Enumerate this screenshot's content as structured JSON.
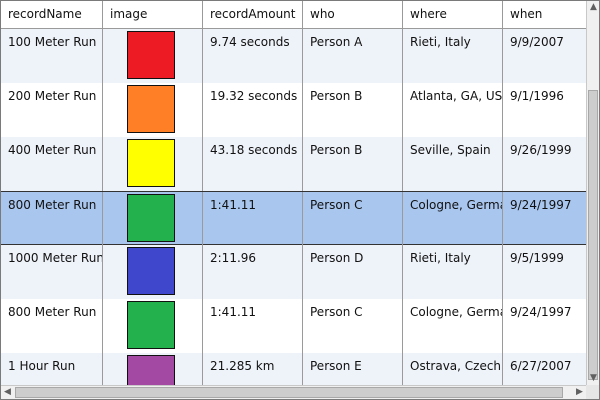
{
  "columns": [
    "recordName",
    "image",
    "recordAmount",
    "who",
    "where",
    "when"
  ],
  "rows": [
    {
      "name": "100 Meter Run",
      "color": "#ed1c24",
      "amount": "9.74 seconds",
      "who": "Person A",
      "where": "Rieti, Italy",
      "when": "9/9/2007"
    },
    {
      "name": "200 Meter Run",
      "color": "#ff7f27",
      "amount": "19.32 seconds",
      "who": "Person B",
      "where": "Atlanta, GA, USA",
      "when": "9/1/1996"
    },
    {
      "name": "400 Meter Run",
      "color": "#ffff00",
      "amount": "43.18 seconds",
      "who": "Person B",
      "where": "Seville, Spain",
      "when": "9/26/1999"
    },
    {
      "name": "800 Meter Run",
      "color": "#22b14c",
      "amount": "1:41.11",
      "who": "Person C",
      "where": "Cologne, Germany",
      "when": "9/24/1997"
    },
    {
      "name": "1000 Meter Run",
      "color": "#3f48cc",
      "amount": "2:11.96",
      "who": "Person D",
      "where": "Rieti, Italy",
      "when": "9/5/1999"
    },
    {
      "name": "800 Meter Run",
      "color": "#22b14c",
      "amount": "1:41.11",
      "who": "Person C",
      "where": "Cologne, Germany",
      "when": "9/24/1997"
    },
    {
      "name": "1 Hour Run",
      "color": "#a349a4",
      "amount": "21.285 km",
      "who": "Person E",
      "where": "Ostrava, Czech Republic",
      "when": "6/27/2007"
    }
  ],
  "selected_row": 3,
  "scrollbars": {
    "up": "▲",
    "down": "▼",
    "left": "◀",
    "right": "▶"
  }
}
